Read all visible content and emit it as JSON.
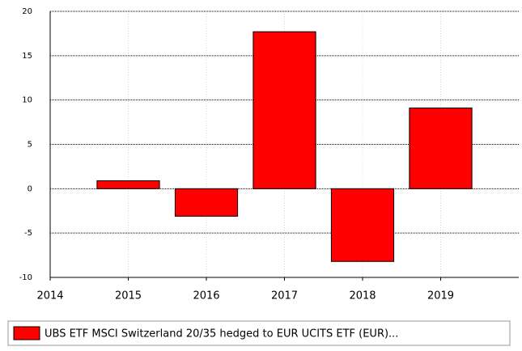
{
  "chart_data": {
    "type": "bar",
    "x": [
      2015,
      2016,
      2017,
      2018,
      2019
    ],
    "xlim": [
      2014,
      2020
    ],
    "xticks": [
      2014,
      2015,
      2016,
      2017,
      2018,
      2019
    ],
    "ylim": [
      -10,
      20
    ],
    "yticks": [
      -10,
      -5,
      0,
      5,
      10,
      15,
      20
    ],
    "grid": true,
    "series": [
      {
        "name": "UBS ETF MSCI Switzerland 20/35 hedged to EUR UCITS ETF (EUR)...",
        "color": "#ff0000",
        "values": [
          0.9,
          -3.1,
          17.7,
          -8.2,
          9.1
        ]
      }
    ]
  }
}
